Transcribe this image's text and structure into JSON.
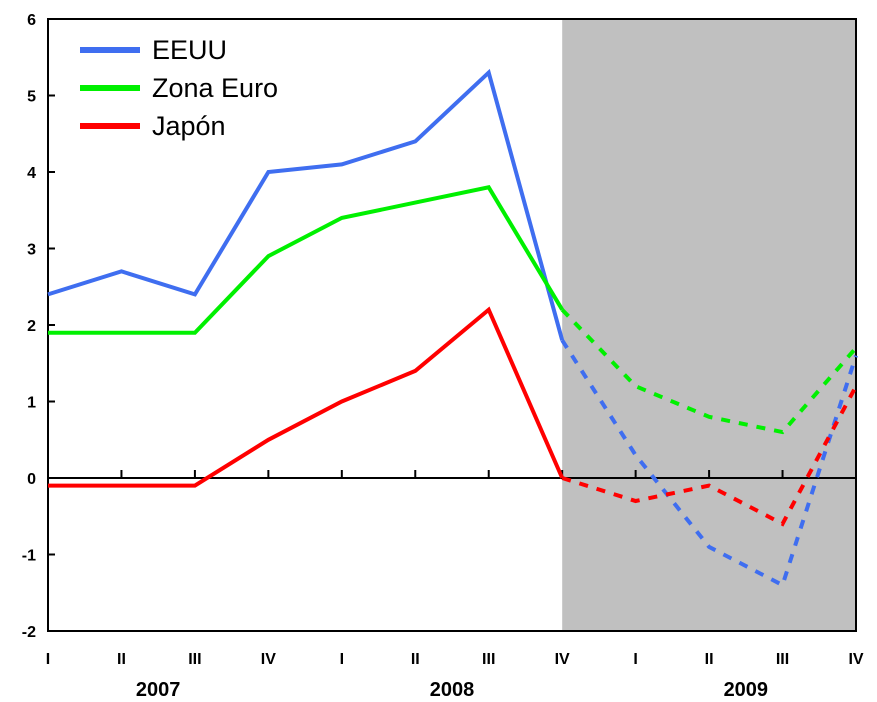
{
  "chart_data": {
    "type": "line",
    "categories": [
      "I",
      "II",
      "III",
      "IV",
      "I",
      "II",
      "III",
      "IV",
      "I",
      "II",
      "III",
      "IV"
    ],
    "years": [
      {
        "label": "2007",
        "start": 0,
        "end": 3
      },
      {
        "label": "2008",
        "start": 4,
        "end": 7
      },
      {
        "label": "2009",
        "start": 8,
        "end": 11
      }
    ],
    "ylim": [
      -2,
      6
    ],
    "yticks": [
      "-2",
      "-1",
      "0",
      "1",
      "2",
      "3",
      "4",
      "5",
      "6"
    ],
    "forecast_start_index": 7,
    "series": [
      {
        "name": "EEUU",
        "color": "#3f6ef0",
        "values": [
          2.4,
          2.7,
          2.4,
          4.0,
          4.1,
          4.4,
          5.3,
          1.8,
          0.3,
          -0.9,
          -1.4,
          1.6
        ]
      },
      {
        "name": "Zona Euro",
        "color": "#00f000",
        "values": [
          1.9,
          1.9,
          1.9,
          2.9,
          3.4,
          3.6,
          3.8,
          2.2,
          1.2,
          0.8,
          0.6,
          1.7
        ]
      },
      {
        "name": "Japón",
        "color": "#ff0000",
        "values": [
          -0.1,
          -0.1,
          -0.1,
          0.5,
          1.0,
          1.4,
          2.2,
          0.0,
          -0.3,
          -0.1,
          -0.6,
          1.2
        ]
      }
    ],
    "shading": {
      "color": "#c0c0c0",
      "from_index": 7,
      "to_index": 11
    },
    "legend": "top-left",
    "grid": false
  }
}
